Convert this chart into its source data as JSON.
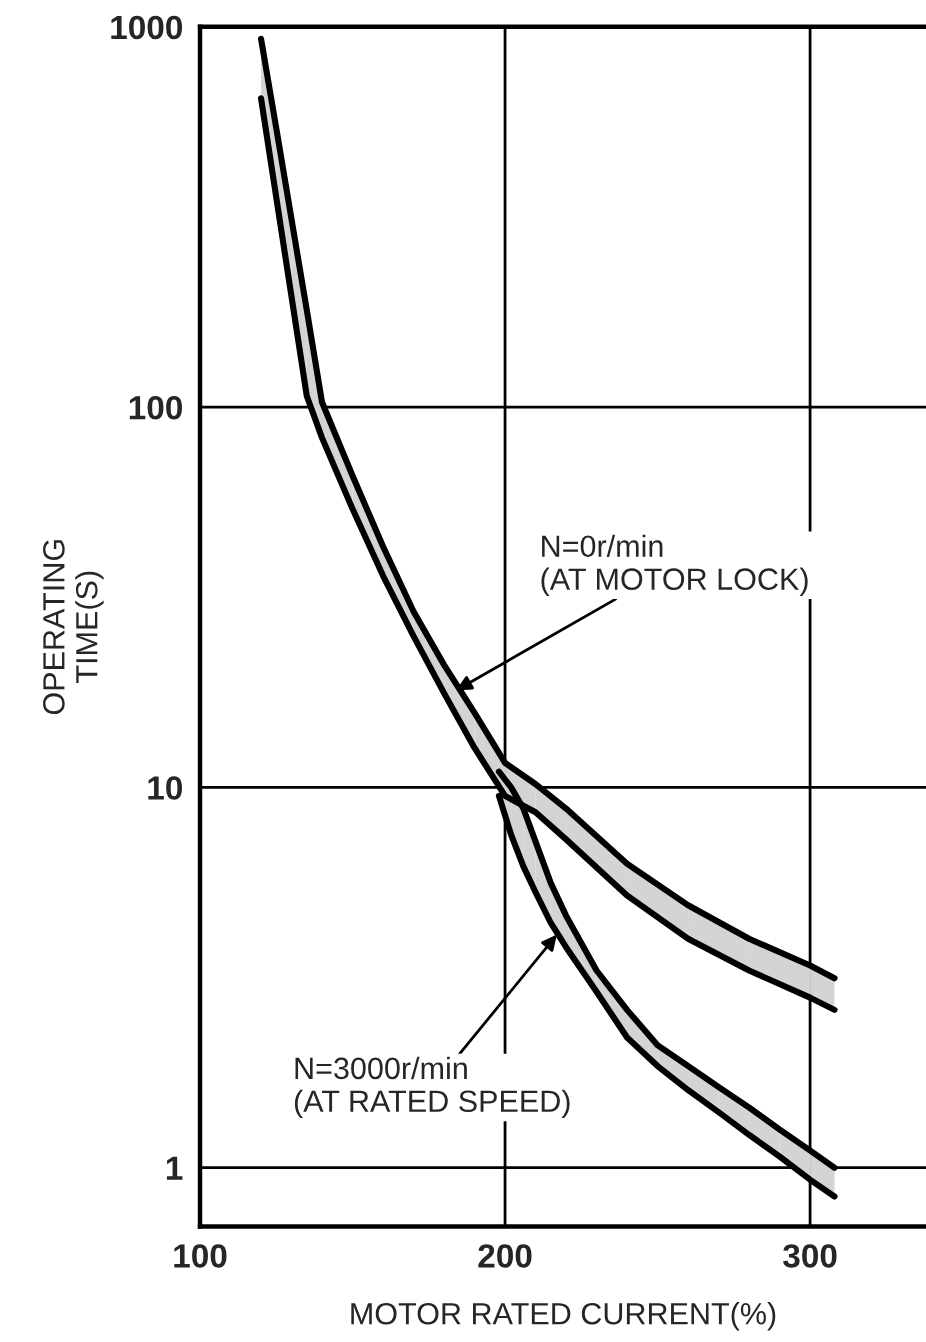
{
  "chart_data": {
    "type": "line",
    "xlabel": "MOTOR RATED CURRENT(%)",
    "ylabel": "OPERATING\nTIME(S)",
    "log": "y",
    "grid": true,
    "xlim": [
      100,
      338
    ],
    "ylim": [
      0.7,
      1000
    ],
    "xticks": [
      100,
      200,
      300
    ],
    "yticks": [
      1,
      10,
      100,
      1000
    ],
    "series": [
      {
        "color": "#000000",
        "x": [
          120,
          125,
          130,
          135,
          140,
          150,
          160,
          170,
          180,
          190,
          200,
          210,
          220,
          240,
          260,
          280,
          300,
          308
        ],
        "values": [
          649,
          356,
          195,
          107,
          83,
          54,
          36,
          25,
          17.7,
          12.7,
          9.5,
          8.6,
          7.3,
          5.2,
          4.0,
          3.3,
          2.8,
          2.6
        ]
      },
      {
        "color": "#000000",
        "x": [
          120,
          125,
          130,
          135,
          140,
          150,
          160,
          170,
          180,
          190,
          200,
          210,
          220,
          240,
          260,
          280,
          300,
          308
        ],
        "values": [
          930,
          541,
          312,
          180,
          103,
          66,
          43,
          29,
          21,
          15.7,
          11.6,
          10.2,
          8.8,
          6.3,
          4.9,
          4.0,
          3.4,
          3.15
        ]
      },
      {
        "color": "#000000",
        "x": [
          198,
          202,
          206,
          210,
          215,
          220,
          230,
          240,
          250,
          260,
          270,
          280,
          290,
          300,
          308
        ],
        "values": [
          9.5,
          7.5,
          6.2,
          5.3,
          4.4,
          3.8,
          2.9,
          2.2,
          1.85,
          1.6,
          1.4,
          1.22,
          1.07,
          0.93,
          0.84
        ]
      },
      {
        "color": "#000000",
        "x": [
          198,
          202,
          206,
          210,
          215,
          220,
          230,
          240,
          250,
          260,
          270,
          280,
          290,
          300,
          308
        ],
        "values": [
          11,
          10,
          8.8,
          7.2,
          5.6,
          4.6,
          3.3,
          2.6,
          2.1,
          1.85,
          1.63,
          1.44,
          1.26,
          1.11,
          1.0
        ]
      }
    ],
    "annotations": [
      {
        "text": "N=0r/min\n(AT MOTOR LOCK)",
        "x": 184,
        "y": 18
      },
      {
        "text": "N=3000r/min\n(AT RATED SPEED)",
        "x": 217,
        "y": 4.1
      }
    ]
  }
}
